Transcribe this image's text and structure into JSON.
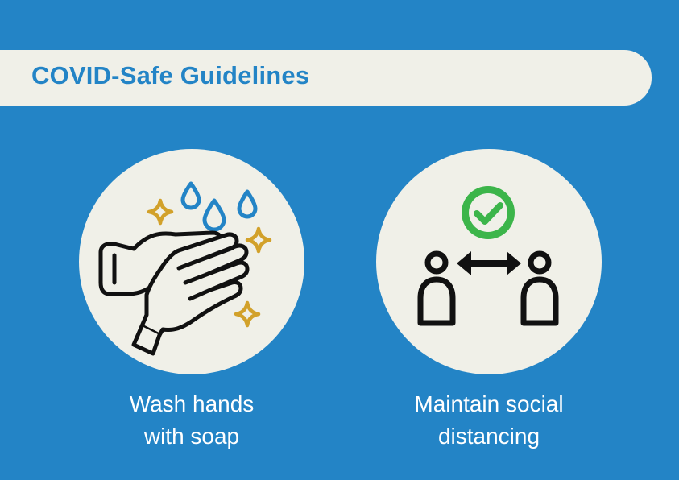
{
  "banner": {
    "title": "COVID-Safe Guidelines"
  },
  "guidelines": [
    {
      "icon": "washing-hands-icon",
      "line1": "Wash hands",
      "line2": "with soap"
    },
    {
      "icon": "social-distancing-icon",
      "line1": "Maintain social",
      "line2": "distancing"
    }
  ],
  "colors": {
    "background": "#2384c6",
    "panel": "#f0f0e8",
    "water": "#2384c6",
    "sparkle": "#d2a12a",
    "check": "#3cb54a",
    "outline": "#111111",
    "caption": "#ffffff"
  }
}
